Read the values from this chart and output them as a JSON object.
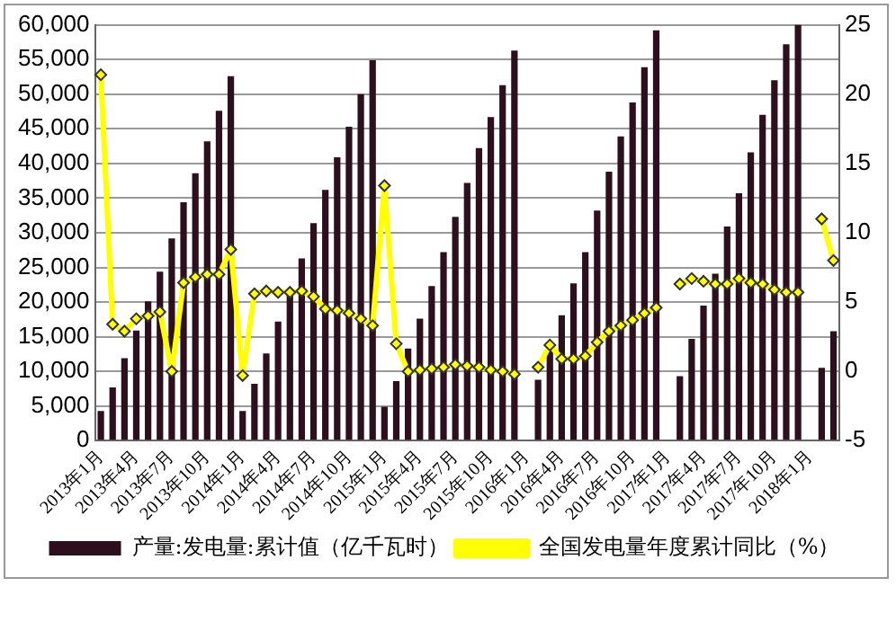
{
  "chart_data": {
    "type": "bar",
    "categories": [
      "2013年1月",
      null,
      null,
      "2013年4月",
      null,
      null,
      "2013年7月",
      null,
      null,
      "2013年10月",
      null,
      null,
      "2014年1月",
      null,
      null,
      "2014年4月",
      null,
      null,
      "2014年7月",
      null,
      null,
      "2014年10月",
      null,
      null,
      "2015年1月",
      null,
      null,
      "2015年4月",
      null,
      null,
      "2015年7月",
      null,
      null,
      "2015年10月",
      null,
      null,
      "2016年1月",
      null,
      null,
      "2016年4月",
      null,
      null,
      "2016年7月",
      null,
      null,
      "2016年10月",
      null,
      null,
      "2017年1月",
      null,
      null,
      "2017年4月",
      null,
      null,
      "2017年7月",
      null,
      null,
      "2017年10月",
      null,
      null,
      "2018年1月",
      null,
      null
    ],
    "series": [
      {
        "name": "产量:发电量:累计值（亿千瓦时）",
        "color": "#2e0f1e",
        "values": [
          4300,
          7700,
          11900,
          15900,
          20100,
          24400,
          29200,
          34400,
          38600,
          43200,
          47600,
          52600,
          4300,
          8200,
          12600,
          17200,
          21400,
          26300,
          31400,
          36200,
          40900,
          45300,
          50000,
          54900,
          4900,
          8600,
          13300,
          17600,
          22300,
          27200,
          32300,
          37200,
          42200,
          46700,
          51300,
          56300,
          null,
          8800,
          13500,
          18100,
          22700,
          27200,
          33200,
          38800,
          43900,
          48800,
          53900,
          59200,
          null,
          9300,
          14700,
          19500,
          24100,
          30900,
          35700,
          41600,
          47000,
          52000,
          57200,
          60000,
          null,
          10500,
          15800
        ]
      },
      {
        "name": "全国发电量年度累计同比（%）",
        "type": "line",
        "axis": "y2",
        "color": "#ffff00",
        "marker": "diamond",
        "values": [
          21.4,
          3.4,
          2.9,
          3.8,
          4.0,
          4.3,
          0.0,
          6.4,
          6.8,
          7.0,
          7.0,
          8.8,
          -0.3,
          5.6,
          5.8,
          5.7,
          5.7,
          5.8,
          5.4,
          4.5,
          4.4,
          4.2,
          3.8,
          3.3,
          13.4,
          2.0,
          0.0,
          0.1,
          0.2,
          0.3,
          0.5,
          0.4,
          0.3,
          0.1,
          0.0,
          -0.2,
          null,
          0.3,
          1.9,
          0.9,
          0.9,
          1.1,
          2.1,
          2.9,
          3.3,
          3.7,
          4.2,
          4.6,
          null,
          6.3,
          6.7,
          6.5,
          6.3,
          6.3,
          6.7,
          6.4,
          6.3,
          5.9,
          5.7,
          5.7,
          null,
          11.0,
          8.0
        ]
      }
    ],
    "ylim": [
      0,
      60000
    ],
    "yticks": [
      0,
      {
        "value": 5000,
        "label": "5,000"
      },
      {
        "value": 10000,
        "label": "10,000"
      },
      {
        "value": 15000,
        "label": "15,000"
      },
      {
        "value": 20000,
        "label": "20,000"
      },
      {
        "value": 25000,
        "label": "25,000"
      },
      {
        "value": 30000,
        "label": "30,000"
      },
      {
        "value": 35000,
        "label": "35,000"
      },
      {
        "value": 40000,
        "label": "40,000"
      },
      {
        "value": 45000,
        "label": "45,000"
      },
      {
        "value": 50000,
        "label": "50,000"
      },
      {
        "value": 55000,
        "label": "55,000"
      },
      {
        "value": 60000,
        "label": "60,000"
      }
    ],
    "y2lim": [
      -5,
      25
    ],
    "y2ticks": [
      -5,
      0,
      5,
      10,
      15,
      20,
      25
    ],
    "grid": "y",
    "legend": "bottom"
  }
}
